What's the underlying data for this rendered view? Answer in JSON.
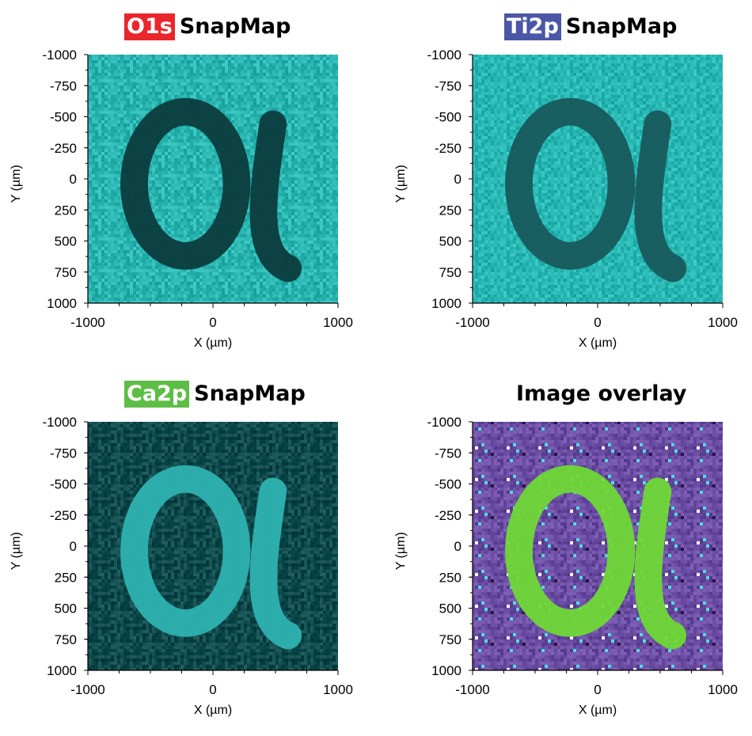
{
  "chart_data": [
    {
      "type": "heatmap",
      "element": "O1s",
      "title_suffix": "SnapMap",
      "tag_color": "#e8262b",
      "xlabel": "X (µm)",
      "ylabel": "Y (µm)",
      "xlim": [
        -1000,
        1000
      ],
      "ylim": [
        -1000,
        1000
      ],
      "x_ticks": [
        "-1000",
        "0",
        "1000"
      ],
      "y_ticks": [
        "-1000",
        "-750",
        "-500",
        "-250",
        "0",
        "250",
        "500",
        "750",
        "1000"
      ],
      "colormap": {
        "background": "#2ab5b0",
        "letter": "#0c3c3e"
      },
      "feature": "α"
    },
    {
      "type": "heatmap",
      "element": "Ti2p",
      "title_suffix": "SnapMap",
      "tag_color": "#4a56a6",
      "xlabel": "X (µm)",
      "ylabel": "Y (µm)",
      "xlim": [
        -1000,
        1000
      ],
      "ylim": [
        -1000,
        1000
      ],
      "x_ticks": [
        "-1000",
        "0",
        "1000"
      ],
      "y_ticks": [
        "-1000",
        "-750",
        "-500",
        "-250",
        "0",
        "250",
        "500",
        "750",
        "1000"
      ],
      "colormap": {
        "background": "#2ab8b4",
        "letter": "#185a5c"
      },
      "feature": "α"
    },
    {
      "type": "heatmap",
      "element": "Ca2p",
      "title_suffix": "SnapMap",
      "tag_color": "#5dbd45",
      "xlabel": "X (µm)",
      "ylabel": "Y (µm)",
      "xlim": [
        -1000,
        1000
      ],
      "ylim": [
        -1000,
        1000
      ],
      "x_ticks": [
        "-1000",
        "0",
        "1000"
      ],
      "y_ticks": [
        "-1000",
        "-750",
        "-500",
        "-250",
        "0",
        "250",
        "500",
        "750",
        "1000"
      ],
      "colormap": {
        "background": "#0f4a4c",
        "letter": "#2eb2b0"
      },
      "feature": "α"
    },
    {
      "type": "heatmap",
      "element": "",
      "title_suffix": "Image overlay",
      "tag_color": "",
      "xlabel": "X (µm)",
      "ylabel": "Y (µm)",
      "xlim": [
        -1000,
        1000
      ],
      "ylim": [
        -1000,
        1000
      ],
      "x_ticks": [
        "-1000",
        "0",
        "1000"
      ],
      "y_ticks": [
        "-1000",
        "-750",
        "-500",
        "-250",
        "0",
        "250",
        "500",
        "750",
        "1000"
      ],
      "colormap": {
        "background": "#6a4ca2",
        "letter": "#6fd836"
      },
      "feature": "α"
    }
  ]
}
